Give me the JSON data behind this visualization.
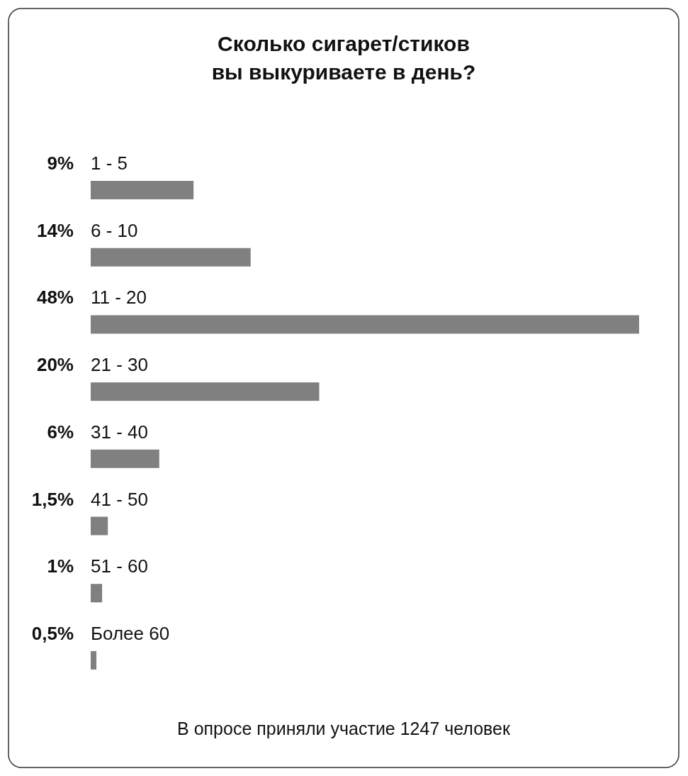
{
  "chart_data": {
    "type": "bar",
    "orientation": "horizontal",
    "title": "Сколько сигарет/стиков\nвы выкуриваете в день?",
    "categories": [
      "1 - 5",
      "6 - 10",
      "11 - 20",
      "21 - 30",
      "31 - 40",
      "41 - 50",
      "51 - 60",
      "Более 60"
    ],
    "values": [
      9,
      14,
      48,
      20,
      6,
      1.5,
      1,
      0.5
    ],
    "value_labels": [
      "9%",
      "14%",
      "48%",
      "20%",
      "6%",
      "1,5%",
      "1%",
      "0,5%"
    ],
    "color": "#808080",
    "annotations": [
      "В опросе приняли участие 1247 человек"
    ]
  }
}
